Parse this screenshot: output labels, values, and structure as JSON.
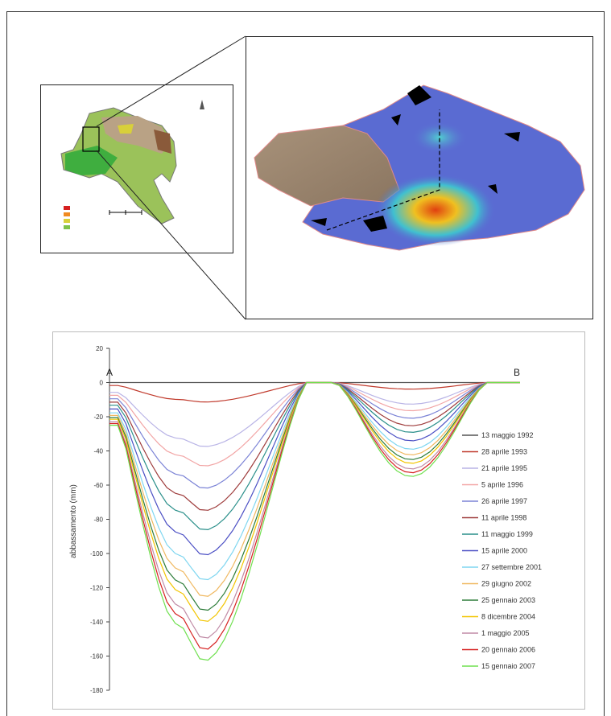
{
  "map_overview": {
    "legend_title": "",
    "scale_label": ""
  },
  "profile_points": {
    "start": "A",
    "end": "B"
  },
  "chart_data": {
    "type": "line",
    "title": "",
    "xlabel": "",
    "ylabel": "abbassamento (mm)",
    "ylim": [
      -180,
      20
    ],
    "yticks": [
      20,
      0,
      -20,
      -40,
      -60,
      -80,
      -100,
      -120,
      -140,
      -160,
      -180
    ],
    "x": [
      0,
      2,
      4,
      6,
      8,
      10,
      12,
      14,
      16,
      18,
      20,
      22,
      24,
      26,
      28,
      30,
      32,
      34,
      36,
      38,
      40,
      42,
      44,
      46,
      48,
      50,
      52,
      54,
      56,
      58,
      60,
      62,
      64,
      66,
      68,
      70,
      72,
      74,
      76,
      78,
      80,
      82,
      84,
      86,
      88,
      90,
      92,
      94,
      96,
      98,
      100
    ],
    "legend_position": "right",
    "series": [
      {
        "name": "13 maggio 1992",
        "color": "#555555"
      },
      {
        "name": "28 aprile 1993",
        "color": "#c0392b"
      },
      {
        "name": "21 aprile 1995",
        "color": "#b9b4e6"
      },
      {
        "name": "5 aprile 1996",
        "color": "#f2a5a5"
      },
      {
        "name": "26 aprile 1997",
        "color": "#7b83d6"
      },
      {
        "name": "11 aprile 1998",
        "color": "#9e3b3b"
      },
      {
        "name": "11 maggio 1999",
        "color": "#2a8f8a"
      },
      {
        "name": "15 aprile 2000",
        "color": "#4b4fc4"
      },
      {
        "name": "27 settembre 2001",
        "color": "#7fd6f0"
      },
      {
        "name": "29 giugno 2002",
        "color": "#f0b860"
      },
      {
        "name": "25 gennaio 2003",
        "color": "#2e7d3a"
      },
      {
        "name": "8 dicembre 2004",
        "color": "#f2c500"
      },
      {
        "name": "1 maggio 2005",
        "color": "#c08aa5"
      },
      {
        "name": "20 gennaio 2006",
        "color": "#d62020"
      },
      {
        "name": "15 gennaio 2007",
        "color": "#6fe04f"
      }
    ],
    "depth_factors": [
      0.0,
      0.07,
      0.23,
      0.3,
      0.38,
      0.46,
      0.53,
      0.62,
      0.71,
      0.77,
      0.82,
      0.86,
      0.92,
      0.96,
      1.0
    ],
    "max_depth_first_trough": -164,
    "max_depth_second_trough": -55
  }
}
